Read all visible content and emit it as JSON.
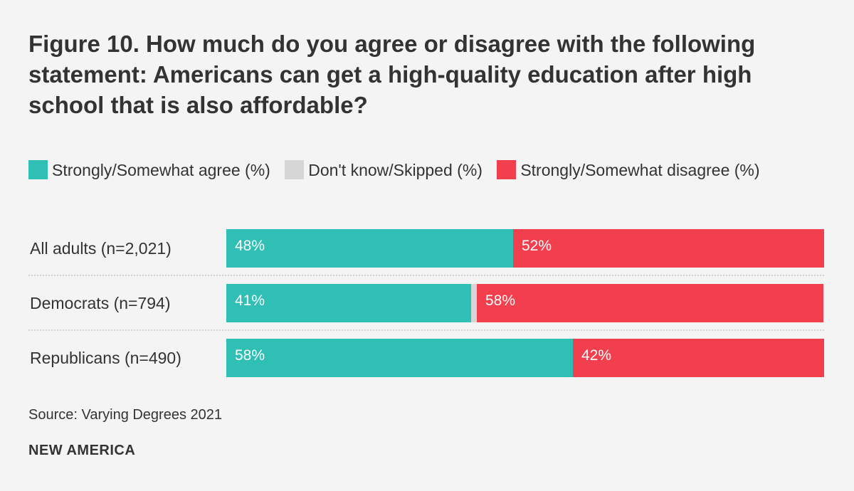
{
  "chart_data": {
    "type": "bar",
    "orientation": "horizontal",
    "stacked": true,
    "title": "Figure 10. How much do you agree or disagree with the following statement: Americans can get a high-quality education after high school that is also affordable?",
    "categories": [
      "All adults (n=2,021)",
      "Democrats (n=794)",
      "Republicans (n=490)"
    ],
    "series": [
      {
        "name": "Strongly/Somewhat agree (%)",
        "color": "#2fbfb4",
        "values": [
          48,
          41,
          58
        ],
        "labels": [
          "48%",
          "41%",
          "58%"
        ]
      },
      {
        "name": "Don't know/Skipped (%)",
        "color": "#d6d6d6",
        "values": [
          0,
          1,
          0
        ],
        "labels": [
          "",
          "",
          ""
        ]
      },
      {
        "name": "Strongly/Somewhat disagree (%)",
        "color": "#f23f4d",
        "values": [
          52,
          58,
          42
        ],
        "labels": [
          "52%",
          "58%",
          "42%"
        ]
      }
    ],
    "xlim": [
      0,
      100
    ],
    "xlabel": "",
    "ylabel": "",
    "grid": false,
    "legend_position": "top"
  },
  "footer": {
    "source": "Source: Varying Degrees 2021",
    "brand": "NEW AMERICA"
  }
}
